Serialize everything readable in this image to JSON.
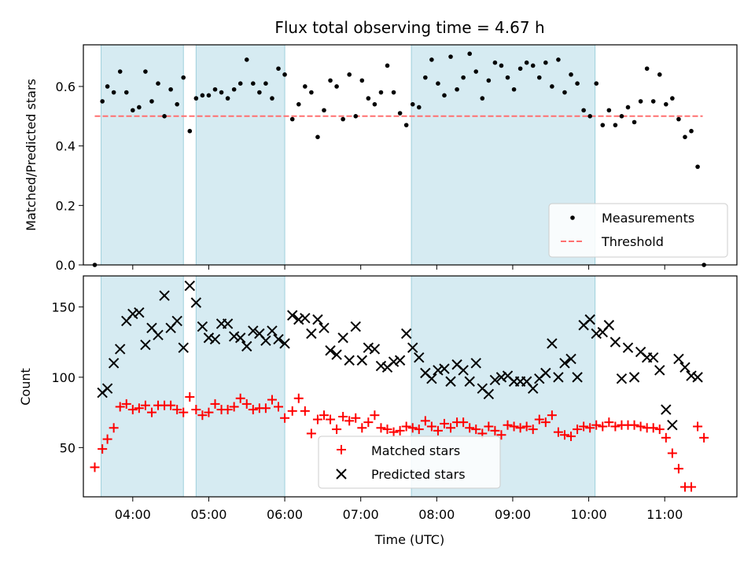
{
  "chart_data": [
    {
      "type": "scatter",
      "panel": "top",
      "title": "Flux total observing time = 4.67 h",
      "xlabel": "",
      "ylabel": "Matched/Predicted stars",
      "xlim": [
        "03:21",
        "11:57"
      ],
      "ylim": [
        0,
        0.74
      ],
      "yticks": [
        "0.0",
        "0.2",
        "0.4",
        "0.6"
      ],
      "grid": false,
      "legend_position": "lower right",
      "shaded_intervals": [
        [
          "03:35",
          "04:40"
        ],
        [
          "04:50",
          "06:00"
        ],
        [
          "07:40",
          "10:05"
        ]
      ],
      "threshold": {
        "name": "Threshold",
        "value": 0.5,
        "x_start": "03:30",
        "x_end": "11:30",
        "color": "#ff7070"
      },
      "series": [
        {
          "name": "Measurements",
          "color": "#000000",
          "x": [
            "03:30",
            "03:36",
            "03:40",
            "03:45",
            "03:50",
            "03:55",
            "04:00",
            "04:05",
            "04:10",
            "04:15",
            "04:20",
            "04:25",
            "04:30",
            "04:35",
            "04:40",
            "04:45",
            "04:50",
            "04:55",
            "05:00",
            "05:05",
            "05:10",
            "05:15",
            "05:20",
            "05:25",
            "05:30",
            "05:35",
            "05:40",
            "05:45",
            "05:50",
            "05:55",
            "06:00",
            "06:06",
            "06:11",
            "06:16",
            "06:21",
            "06:26",
            "06:31",
            "06:36",
            "06:41",
            "06:46",
            "06:51",
            "06:56",
            "07:01",
            "07:06",
            "07:11",
            "07:16",
            "07:21",
            "07:26",
            "07:31",
            "07:36",
            "07:41",
            "07:46",
            "07:51",
            "07:56",
            "08:01",
            "08:06",
            "08:11",
            "08:16",
            "08:21",
            "08:26",
            "08:31",
            "08:36",
            "08:41",
            "08:46",
            "08:51",
            "08:56",
            "09:01",
            "09:06",
            "09:11",
            "09:16",
            "09:21",
            "09:26",
            "09:31",
            "09:36",
            "09:41",
            "09:46",
            "09:51",
            "09:56",
            "10:01",
            "10:06",
            "10:11",
            "10:16",
            "10:21",
            "10:26",
            "10:31",
            "10:36",
            "10:41",
            "10:46",
            "10:51",
            "10:56",
            "11:01",
            "11:06",
            "11:11",
            "11:16",
            "11:21",
            "11:26",
            "11:31"
          ],
          "y": [
            0.0,
            0.55,
            0.6,
            0.58,
            0.65,
            0.58,
            0.52,
            0.53,
            0.65,
            0.55,
            0.61,
            0.5,
            0.59,
            0.54,
            0.63,
            0.45,
            0.56,
            0.57,
            0.57,
            0.59,
            0.58,
            0.56,
            0.59,
            0.61,
            0.69,
            0.61,
            0.58,
            0.61,
            0.56,
            0.66,
            0.64,
            0.49,
            0.54,
            0.6,
            0.58,
            0.43,
            0.52,
            0.62,
            0.6,
            0.49,
            0.64,
            0.5,
            0.62,
            0.56,
            0.54,
            0.58,
            0.67,
            0.58,
            0.51,
            0.47,
            0.54,
            0.53,
            0.63,
            0.69,
            0.61,
            0.57,
            0.7,
            0.59,
            0.63,
            0.71,
            0.65,
            0.56,
            0.62,
            0.68,
            0.67,
            0.63,
            0.59,
            0.66,
            0.68,
            0.67,
            0.63,
            0.68,
            0.6,
            0.69,
            0.58,
            0.64,
            0.61,
            0.52,
            0.5,
            0.61,
            0.47,
            0.52,
            0.47,
            0.5,
            0.53,
            0.48,
            0.55,
            0.66,
            0.55,
            0.64,
            0.54,
            0.56,
            0.49,
            0.43,
            0.45,
            0.33,
            0.0
          ]
        }
      ]
    },
    {
      "type": "scatter",
      "panel": "bottom",
      "title": "",
      "xlabel": "Time (UTC)",
      "ylabel": "Count",
      "xlim": [
        "03:21",
        "11:57"
      ],
      "ylim": [
        15,
        172
      ],
      "xticks": [
        "04:00",
        "05:00",
        "06:00",
        "07:00",
        "08:00",
        "09:00",
        "10:00",
        "11:00"
      ],
      "yticks": [
        "50",
        "100",
        "150"
      ],
      "grid": false,
      "legend_position": "lower center",
      "shaded_intervals": [
        [
          "03:35",
          "04:40"
        ],
        [
          "04:50",
          "06:00"
        ],
        [
          "07:40",
          "10:05"
        ]
      ],
      "series": [
        {
          "name": "Matched stars",
          "marker": "+",
          "color": "#ff0000",
          "x": [
            "03:30",
            "03:36",
            "03:40",
            "03:45",
            "03:50",
            "03:55",
            "04:00",
            "04:05",
            "04:10",
            "04:15",
            "04:20",
            "04:25",
            "04:30",
            "04:35",
            "04:40",
            "04:45",
            "04:50",
            "04:55",
            "05:00",
            "05:05",
            "05:10",
            "05:15",
            "05:20",
            "05:25",
            "05:30",
            "05:35",
            "05:40",
            "05:45",
            "05:50",
            "05:55",
            "06:00",
            "06:06",
            "06:11",
            "06:16",
            "06:21",
            "06:26",
            "06:31",
            "06:36",
            "06:41",
            "06:46",
            "06:51",
            "06:56",
            "07:01",
            "07:06",
            "07:11",
            "07:16",
            "07:21",
            "07:26",
            "07:31",
            "07:36",
            "07:41",
            "07:46",
            "07:51",
            "07:56",
            "08:01",
            "08:06",
            "08:11",
            "08:16",
            "08:21",
            "08:26",
            "08:31",
            "08:36",
            "08:41",
            "08:46",
            "08:51",
            "08:56",
            "09:01",
            "09:06",
            "09:11",
            "09:16",
            "09:21",
            "09:26",
            "09:31",
            "09:36",
            "09:41",
            "09:46",
            "09:51",
            "09:56",
            "10:01",
            "10:06",
            "10:11",
            "10:16",
            "10:21",
            "10:26",
            "10:31",
            "10:36",
            "10:41",
            "10:46",
            "10:51",
            "10:56",
            "11:01",
            "11:06",
            "11:11",
            "11:16",
            "11:21",
            "11:26",
            "11:31"
          ],
          "y": [
            36,
            49,
            56,
            64,
            79,
            81,
            77,
            78,
            80,
            75,
            80,
            80,
            80,
            77,
            75,
            86,
            77,
            73,
            75,
            81,
            77,
            77,
            79,
            85,
            81,
            77,
            78,
            78,
            84,
            79,
            71,
            76,
            85,
            76,
            60,
            70,
            73,
            70,
            63,
            72,
            69,
            71,
            64,
            68,
            73,
            64,
            63,
            61,
            62,
            65,
            64,
            63,
            69,
            65,
            62,
            67,
            64,
            68,
            68,
            64,
            63,
            60,
            65,
            62,
            59,
            66,
            65,
            64,
            65,
            63,
            70,
            68,
            73,
            61,
            59,
            58,
            63,
            65,
            64,
            66,
            65,
            68,
            65,
            66,
            66,
            66,
            65,
            64,
            64,
            63,
            57,
            46,
            35,
            22,
            22,
            65,
            57
          ],
          "y_note_end": ""
        },
        {
          "name": "Predicted stars",
          "marker": "x",
          "color": "#000000",
          "x": [
            "03:36",
            "03:40",
            "03:45",
            "03:50",
            "03:55",
            "04:00",
            "04:05",
            "04:10",
            "04:15",
            "04:20",
            "04:25",
            "04:30",
            "04:35",
            "04:40",
            "04:45",
            "04:50",
            "04:55",
            "05:00",
            "05:05",
            "05:10",
            "05:15",
            "05:20",
            "05:25",
            "05:30",
            "05:35",
            "05:40",
            "05:45",
            "05:50",
            "05:55",
            "06:00",
            "06:06",
            "06:11",
            "06:16",
            "06:21",
            "06:26",
            "06:31",
            "06:36",
            "06:41",
            "06:46",
            "06:51",
            "06:56",
            "07:01",
            "07:06",
            "07:11",
            "07:16",
            "07:21",
            "07:26",
            "07:31",
            "07:36",
            "07:41",
            "07:46",
            "07:51",
            "07:56",
            "08:01",
            "08:06",
            "08:11",
            "08:16",
            "08:21",
            "08:26",
            "08:31",
            "08:36",
            "08:41",
            "08:46",
            "08:51",
            "08:56",
            "09:01",
            "09:06",
            "09:11",
            "09:16",
            "09:21",
            "09:26",
            "09:31",
            "09:36",
            "09:41",
            "09:46",
            "09:51",
            "09:56",
            "10:01",
            "10:06",
            "10:11",
            "10:16",
            "10:21",
            "10:26",
            "10:31",
            "10:36",
            "10:41",
            "10:46",
            "10:51",
            "10:56",
            "11:01",
            "11:06",
            "11:11",
            "11:16",
            "11:21",
            "11:26"
          ],
          "y": [
            89,
            92,
            110,
            120,
            140,
            145,
            146,
            123,
            135,
            130,
            158,
            135,
            140,
            121,
            165,
            153,
            136,
            128,
            127,
            138,
            138,
            129,
            128,
            122,
            133,
            131,
            126,
            133,
            127,
            124,
            144,
            141,
            142,
            131,
            141,
            135,
            119,
            116,
            128,
            112,
            136,
            112,
            121,
            120,
            108,
            107,
            111,
            112,
            131,
            121,
            114,
            103,
            99,
            105,
            106,
            97,
            109,
            105,
            97,
            110,
            92,
            88,
            98,
            100,
            101,
            97,
            97,
            97,
            92,
            99,
            103,
            124,
            100,
            110,
            113,
            100,
            137,
            141,
            131,
            132,
            137,
            125,
            99,
            121,
            100,
            118,
            114,
            114,
            105,
            77,
            66,
            113,
            107,
            101,
            100
          ],
          "y_note_end": ""
        }
      ]
    }
  ]
}
